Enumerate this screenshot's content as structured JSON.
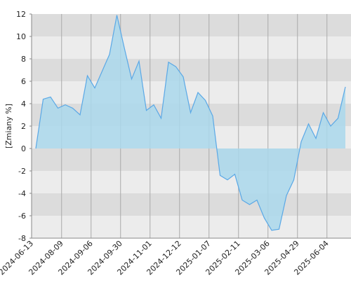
{
  "chart_data": {
    "type": "area",
    "y_label": "[Zmiany %]",
    "xtick_labels": [
      "2024-06-13",
      "2024-08-09",
      "2024-09-06",
      "2024-09-30",
      "2024-11-01",
      "2024-12-12",
      "2025-01-07",
      "2025-02-11",
      "2025-03-06",
      "2025-04-29",
      "2025-06-04"
    ],
    "values": [
      0,
      4.4,
      4.6,
      3.6,
      3.9,
      3.6,
      3.0,
      6.5,
      5.4,
      6.9,
      8.4,
      11.9,
      9.0,
      6.2,
      7.8,
      3.4,
      3.9,
      2.7,
      7.7,
      7.3,
      6.4,
      3.2,
      5.0,
      4.3,
      2.9,
      -2.4,
      -2.8,
      -2.3,
      -4.6,
      -5.0,
      -4.6,
      -6.2,
      -7.3,
      -7.2,
      -4.2,
      -2.8,
      0.6,
      2.2,
      0.9,
      3.2,
      2.0,
      2.7,
      5.5
    ],
    "color": "#5aa8e6",
    "fill": "#aad8ec",
    "ylim": [
      -8,
      12
    ],
    "yticks": [
      -8,
      -6,
      -4,
      -2,
      0,
      2,
      4,
      6,
      8,
      10,
      12
    ],
    "grid": true
  }
}
